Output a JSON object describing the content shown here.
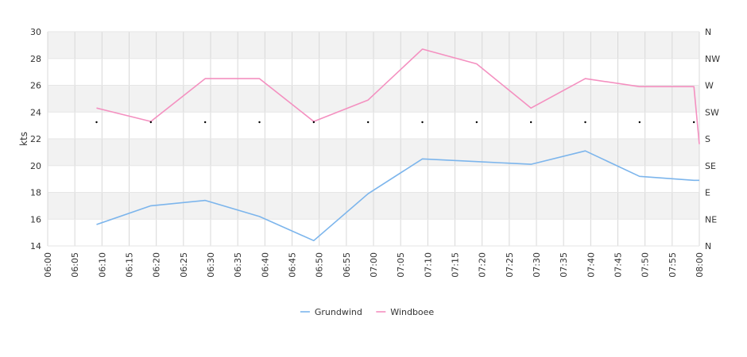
{
  "chart_data": {
    "type": "line",
    "x_time_labels": [
      "06:00",
      "06:05",
      "06:10",
      "06:15",
      "06:20",
      "06:25",
      "06:30",
      "06:35",
      "06:40",
      "06:45",
      "06:50",
      "06:55",
      "07:00",
      "07:05",
      "07:10",
      "07:15",
      "07:20",
      "07:25",
      "07:30",
      "07:35",
      "07:40",
      "07:45",
      "07:50",
      "07:55",
      "08:00"
    ],
    "y_ticks": [
      14,
      16,
      18,
      20,
      22,
      24,
      26,
      28,
      30
    ],
    "ylim": [
      14,
      30
    ],
    "ylabel": "kts",
    "direction_ticks": [
      "N",
      "NE",
      "E",
      "SE",
      "S",
      "SW",
      "W",
      "NW",
      "N"
    ],
    "grid": true,
    "legend": "bottom-center",
    "series": [
      {
        "name": "Grundwind",
        "color": "#7cb5ec",
        "points": [
          {
            "t": "06:09",
            "v": 15.6
          },
          {
            "t": "06:19",
            "v": 17.0
          },
          {
            "t": "06:29",
            "v": 17.4
          },
          {
            "t": "06:39",
            "v": 16.2
          },
          {
            "t": "06:49",
            "v": 14.4
          },
          {
            "t": "06:59",
            "v": 17.9
          },
          {
            "t": "07:09",
            "v": 20.5
          },
          {
            "t": "07:19",
            "v": 20.3
          },
          {
            "t": "07:29",
            "v": 20.1
          },
          {
            "t": "07:39",
            "v": 21.1
          },
          {
            "t": "07:49",
            "v": 19.2
          },
          {
            "t": "07:59",
            "v": 18.9
          },
          {
            "t": "08:00",
            "v": 18.9
          }
        ]
      },
      {
        "name": "Windboee",
        "color": "#f490c0",
        "points": [
          {
            "t": "06:09",
            "v": 24.3
          },
          {
            "t": "06:19",
            "v": 23.3
          },
          {
            "t": "06:29",
            "v": 26.5
          },
          {
            "t": "06:39",
            "v": 26.5
          },
          {
            "t": "06:49",
            "v": 23.3
          },
          {
            "t": "06:59",
            "v": 24.9
          },
          {
            "t": "07:09",
            "v": 28.7
          },
          {
            "t": "07:19",
            "v": 27.6
          },
          {
            "t": "07:29",
            "v": 24.3
          },
          {
            "t": "07:39",
            "v": 26.5
          },
          {
            "t": "07:49",
            "v": 25.9
          },
          {
            "t": "07:59",
            "v": 25.9
          },
          {
            "t": "08:00",
            "v": 21.6
          }
        ]
      }
    ],
    "direction_markers": {
      "color": "#000000",
      "points": [
        {
          "t": "06:09",
          "dir": "S"
        },
        {
          "t": "06:19",
          "dir": "S"
        },
        {
          "t": "06:29",
          "dir": "S"
        },
        {
          "t": "06:39",
          "dir": "S"
        },
        {
          "t": "06:49",
          "dir": "S"
        },
        {
          "t": "06:59",
          "dir": "S"
        },
        {
          "t": "07:09",
          "dir": "S"
        },
        {
          "t": "07:19",
          "dir": "S"
        },
        {
          "t": "07:29",
          "dir": "S"
        },
        {
          "t": "07:39",
          "dir": "S"
        },
        {
          "t": "07:49",
          "dir": "S"
        },
        {
          "t": "07:59",
          "dir": "S"
        }
      ]
    }
  }
}
